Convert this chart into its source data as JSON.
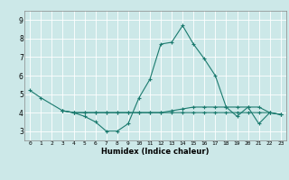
{
  "xlabel": "Humidex (Indice chaleur)",
  "x": [
    0,
    1,
    2,
    3,
    4,
    5,
    6,
    7,
    8,
    9,
    10,
    11,
    12,
    13,
    14,
    15,
    16,
    17,
    18,
    19,
    20,
    21,
    22,
    23
  ],
  "line1": [
    5.2,
    4.8,
    null,
    4.1,
    4.0,
    3.8,
    3.5,
    3.0,
    3.0,
    3.4,
    4.8,
    5.8,
    7.7,
    7.8,
    8.7,
    7.7,
    6.9,
    6.0,
    4.3,
    3.8,
    4.3,
    3.4,
    4.0,
    3.9
  ],
  "line2": [
    null,
    null,
    null,
    4.1,
    4.0,
    4.0,
    4.0,
    4.0,
    4.0,
    4.0,
    4.0,
    4.0,
    4.0,
    4.1,
    4.2,
    4.3,
    4.3,
    4.3,
    4.3,
    4.3,
    4.3,
    4.3,
    4.0,
    3.9
  ],
  "line3": [
    null,
    null,
    null,
    4.1,
    4.0,
    4.0,
    4.0,
    4.0,
    4.0,
    4.0,
    4.0,
    4.0,
    4.0,
    4.0,
    4.0,
    4.0,
    4.0,
    4.0,
    4.0,
    4.0,
    4.0,
    4.0,
    4.0,
    3.9
  ],
  "ylim": [
    2.5,
    9.5
  ],
  "xlim": [
    -0.5,
    23.5
  ],
  "yticks": [
    3,
    4,
    5,
    6,
    7,
    8,
    9
  ],
  "xticks": [
    0,
    1,
    2,
    3,
    4,
    5,
    6,
    7,
    8,
    9,
    10,
    11,
    12,
    13,
    14,
    15,
    16,
    17,
    18,
    19,
    20,
    21,
    22,
    23
  ],
  "line_color": "#1a7a6e",
  "bg_color": "#cce8e8",
  "grid_color": "#ffffff",
  "marker": "+"
}
